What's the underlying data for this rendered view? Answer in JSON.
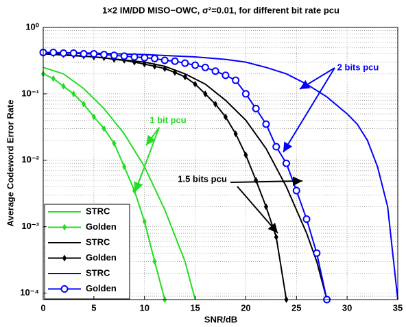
{
  "chart_data": {
    "type": "line",
    "title": "1×2 IM/DD MISO−OWC, σ²=0.01, for different bit rate pcu",
    "xlabel": "SNR/dB",
    "ylabel": "Average Codeword Error Rate",
    "log_y": true,
    "grid": true,
    "legend": "lower left",
    "xlim": [
      0,
      35
    ],
    "xticks": [
      0,
      5,
      10,
      15,
      20,
      25,
      30,
      35
    ],
    "ylim": [
      8e-05,
      1
    ],
    "yticks": [
      {
        "value": 1,
        "label": "10⁰"
      },
      {
        "value": 0.1,
        "label": "10⁻¹"
      },
      {
        "value": 0.01,
        "label": "10⁻²"
      },
      {
        "value": 0.001,
        "label": "10⁻³"
      },
      {
        "value": 0.0001,
        "label": "10⁻⁴"
      }
    ],
    "series": [
      {
        "name": "STRC",
        "color": "#22dd22",
        "marker": "none",
        "x": [
          0,
          2,
          4,
          6,
          8,
          10,
          12,
          14,
          15
        ],
        "values": [
          0.25,
          0.2,
          0.12,
          0.06,
          0.025,
          0.008,
          0.0018,
          0.0003,
          8e-05
        ]
      },
      {
        "name": "Golden",
        "color": "#22dd22",
        "marker": "diamond",
        "x": [
          0,
          1,
          2,
          3,
          4,
          5,
          6,
          7,
          8,
          9,
          10,
          11,
          12
        ],
        "values": [
          0.2,
          0.17,
          0.13,
          0.1,
          0.07,
          0.045,
          0.03,
          0.018,
          0.008,
          0.0035,
          0.0012,
          0.0003,
          8e-05
        ]
      },
      {
        "name": "STRC",
        "color": "#000000",
        "marker": "none",
        "x": [
          0,
          5,
          10,
          12,
          14,
          16,
          18,
          20,
          22,
          24,
          26,
          27,
          28
        ],
        "values": [
          0.4,
          0.36,
          0.3,
          0.26,
          0.2,
          0.14,
          0.08,
          0.04,
          0.015,
          0.004,
          0.0008,
          0.0003,
          8e-05
        ]
      },
      {
        "name": "Golden",
        "color": "#000000",
        "marker": "diamond",
        "x": [
          0,
          1,
          2,
          3,
          4,
          5,
          6,
          7,
          8,
          9,
          10,
          11,
          12,
          13,
          14,
          15,
          16,
          17,
          18,
          19,
          20,
          21,
          22,
          23,
          24
        ],
        "values": [
          0.4,
          0.4,
          0.39,
          0.38,
          0.37,
          0.36,
          0.35,
          0.33,
          0.32,
          0.3,
          0.28,
          0.26,
          0.24,
          0.21,
          0.18,
          0.14,
          0.1,
          0.07,
          0.045,
          0.025,
          0.012,
          0.005,
          0.002,
          0.0007,
          8e-05
        ]
      },
      {
        "name": "STRC",
        "color": "#0000ff",
        "marker": "none",
        "x": [
          0,
          5,
          10,
          15,
          18,
          20,
          22,
          24,
          26,
          28,
          30,
          31,
          32,
          33,
          34,
          35
        ],
        "values": [
          0.42,
          0.41,
          0.39,
          0.36,
          0.33,
          0.3,
          0.25,
          0.2,
          0.14,
          0.09,
          0.05,
          0.035,
          0.02,
          0.008,
          0.002,
          8e-05
        ]
      },
      {
        "name": "Golden",
        "color": "#0000ff",
        "marker": "circle",
        "x": [
          0,
          1,
          2,
          3,
          4,
          5,
          6,
          7,
          8,
          9,
          10,
          11,
          12,
          13,
          14,
          15,
          16,
          17,
          18,
          19,
          20,
          21,
          22,
          23,
          24,
          25,
          26,
          27,
          28
        ],
        "values": [
          0.42,
          0.42,
          0.41,
          0.41,
          0.4,
          0.4,
          0.39,
          0.38,
          0.37,
          0.36,
          0.35,
          0.34,
          0.32,
          0.31,
          0.29,
          0.27,
          0.25,
          0.22,
          0.19,
          0.16,
          0.1,
          0.06,
          0.035,
          0.016,
          0.009,
          0.0035,
          0.0013,
          0.0004,
          8e-05
        ]
      }
    ],
    "annotations": [
      {
        "text": "1 bit pcu",
        "color": "#22dd22"
      },
      {
        "text": "1.5 bits pcu",
        "color": "#000000"
      },
      {
        "text": "2 bits pcu",
        "color": "#0000ff"
      }
    ]
  }
}
